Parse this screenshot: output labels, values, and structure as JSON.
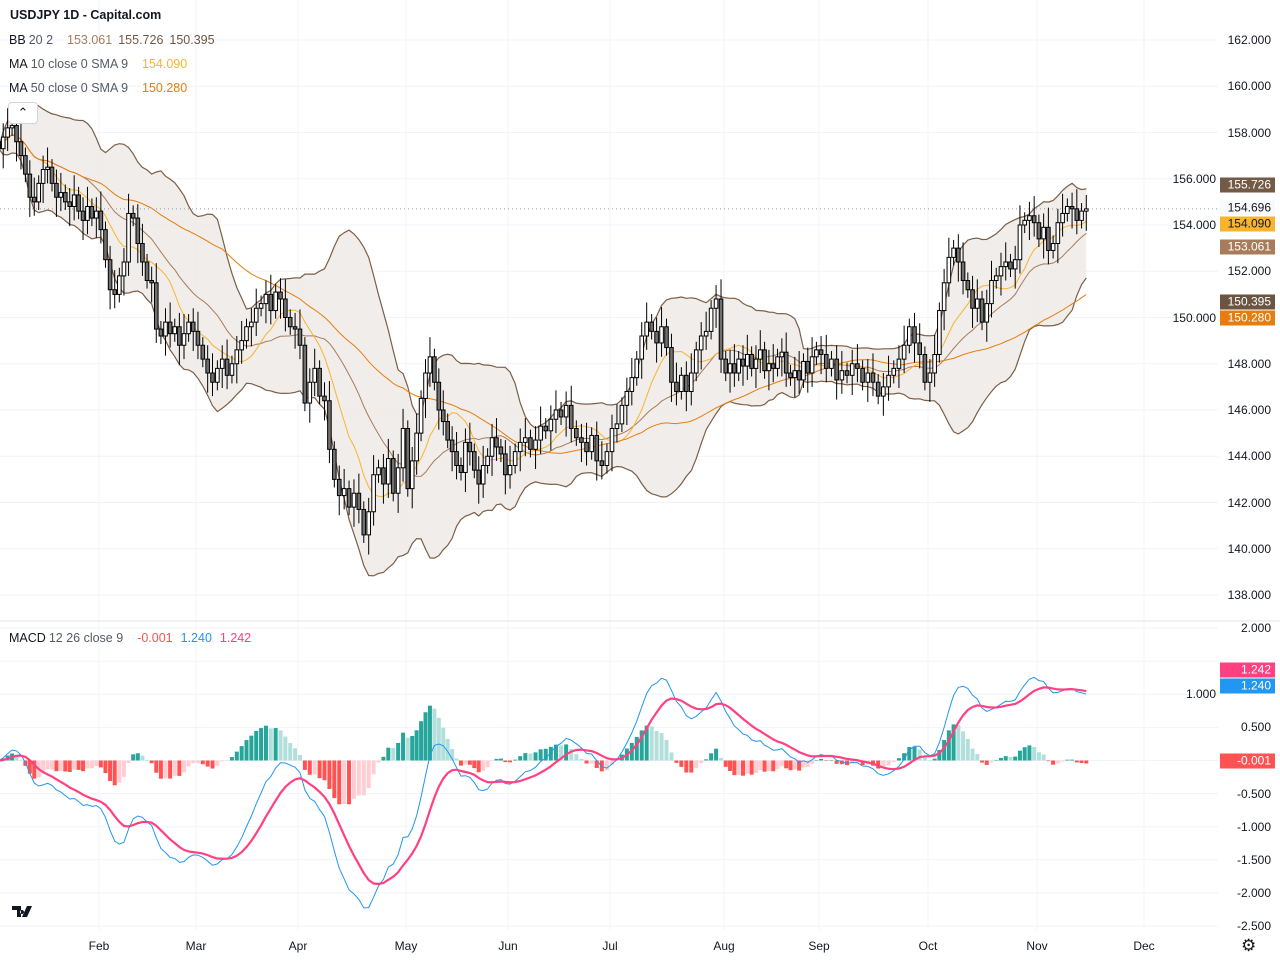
{
  "header": {
    "title": "USDJPY 1D - Capital.com",
    "collapse_icon": "chevron-up-icon"
  },
  "legend": {
    "bb": {
      "name": "BB",
      "params": "20 2",
      "values": [
        "153.061",
        "155.726",
        "150.395"
      ]
    },
    "ma10": {
      "name": "MA",
      "params": "10 close 0 SMA 9",
      "value": "154.090"
    },
    "ma50": {
      "name": "MA",
      "params": "50 close 0 SMA 9",
      "value": "150.280"
    },
    "macd": {
      "name": "MACD",
      "params": "12 26 close 9",
      "values": [
        "-0.001",
        "1.240",
        "1.242"
      ]
    }
  },
  "price_axis": {
    "labels": [
      "162.000",
      "160.000",
      "158.000",
      "156.000",
      "154.000",
      "152.000",
      "150.000",
      "148.000",
      "146.000",
      "144.000",
      "142.000",
      "140.000",
      "138.000"
    ],
    "tags": [
      {
        "value": "155.726",
        "color": "#735a44",
        "text_color": "#ffffff"
      },
      {
        "value": "154.696",
        "color": "#f8f9fb",
        "text_color": "#131722"
      },
      {
        "value": "154.090",
        "color": "#f9b42d",
        "text_color": "#131722"
      },
      {
        "value": "153.061",
        "color": "#a87c5a",
        "text_color": "#ffffff"
      },
      {
        "value": "150.395",
        "color": "#6b5541",
        "text_color": "#ffffff"
      },
      {
        "value": "150.280",
        "color": "#e67d0c",
        "text_color": "#ffffff"
      }
    ]
  },
  "macd_axis": {
    "labels": [
      "2.000",
      "1.000",
      "0.500",
      "-0.500",
      "-1.000",
      "-1.500",
      "-2.000",
      "-2.500"
    ],
    "tags": [
      {
        "value": "1.242",
        "color": "#ff4081"
      },
      {
        "value": "1.240",
        "color": "#2196f3"
      },
      {
        "value": "-0.001",
        "color": "#ff5252"
      }
    ]
  },
  "time_axis": {
    "labels": [
      "Feb",
      "Mar",
      "Apr",
      "May",
      "Jun",
      "Jul",
      "Aug",
      "Sep",
      "Oct",
      "Nov",
      "Dec"
    ]
  },
  "footer": {
    "logo": "TV",
    "settings_icon": "gear-icon"
  },
  "colors": {
    "candle_up": "#ffffff",
    "candle_down": "#707070",
    "candle_border": "#000000",
    "bb_band": "#7b5e46",
    "bb_basis": "#a87c5a",
    "bb_fill": "#efebe8",
    "ma10": "#f9b42d",
    "ma50": "#e67d0c",
    "macd_line": "#2196f3",
    "signal_line": "#ff4081",
    "hist_pos_up": "#26a69a",
    "hist_pos_down": "#b2dfdb",
    "hist_neg_down": "#ff5252",
    "hist_neg_up": "#ffcdd2"
  },
  "chart_data": {
    "type": "candlestick",
    "symbol": "USDJPY",
    "interval": "1D",
    "price_range": [
      138,
      162
    ],
    "macd_range": [
      -2.5,
      2.0
    ],
    "grid": true,
    "closes_by_month": {
      "Jan": [
        157.3,
        157.8,
        158.2,
        158.3,
        157.6,
        157.0,
        156.2,
        155.2,
        155.0,
        155.8,
        156.4,
        156.5,
        155.8,
        155.2,
        155.4,
        155.0,
        154.8,
        155.3,
        154.6,
        154.2,
        154.8,
        154.3,
        154.6
      ],
      "Feb": [
        153.8,
        152.5,
        151.2,
        151.0,
        151.8,
        152.4,
        154.5,
        154.3,
        153.2,
        152.4,
        151.6,
        151.5,
        149.5,
        149.2,
        149.8,
        149.3,
        149.6,
        148.8,
        149.3,
        149.8,
        149.4
      ],
      "Mar": [
        148.8,
        148.2,
        147.6,
        147.2,
        147.8,
        148.2,
        147.5,
        148.0,
        148.6,
        149.0,
        149.6,
        149.8,
        150.4,
        150.6,
        151.0,
        150.3,
        151.1,
        150.8,
        150.0,
        149.6,
        149.5
      ],
      "Apr": [
        148.8,
        146.3,
        147.2,
        147.8,
        146.6,
        146.4,
        144.3,
        143.0,
        142.3,
        142.6,
        141.8,
        142.4,
        141.7,
        140.6,
        141.6,
        143.2,
        143.5,
        142.8,
        143.9,
        142.4,
        143.5,
        145.2
      ],
      "May": [
        142.6,
        143.8,
        145.0,
        146.5,
        147.6,
        148.3,
        147.2,
        146.0,
        145.5,
        144.7,
        144.2,
        143.6,
        143.3,
        144.6,
        144.2,
        143.4,
        142.8,
        143.6,
        144.0,
        144.8,
        144.4,
        144.1,
        143.2
      ],
      "Jun": [
        143.6,
        144.2,
        144.6,
        144.8,
        144.3,
        144.7,
        145.3,
        145.1,
        145.6,
        146.0,
        145.7,
        146.2,
        145.2,
        144.8,
        144.6,
        144.2,
        144.9,
        143.8,
        143.6,
        144.2
      ],
      "Jul": [
        145.2,
        145.4,
        146.2,
        146.8,
        147.4,
        148.2,
        149.2,
        149.8,
        149.4,
        148.9,
        149.6,
        148.7,
        147.2,
        146.8,
        147.5,
        146.8,
        147.6,
        148.6,
        149.2,
        149.4,
        150.4,
        150.8,
        148.2
      ],
      "Aug": [
        147.6,
        148.0,
        147.6,
        148.2,
        147.9,
        148.4,
        147.8,
        148.2,
        148.6,
        147.7,
        148.0,
        147.8,
        148.3,
        148.5,
        147.6,
        147.4,
        147.7,
        147.3,
        148.1,
        147.6,
        148.3,
        148.6
      ],
      "Sep": [
        148.4,
        147.8,
        148.2,
        147.3,
        147.7,
        147.5,
        148.0,
        147.8,
        147.2,
        147.6,
        147.2,
        146.6,
        147.0,
        147.5,
        147.8,
        148.2,
        148.8,
        149.6,
        148.9,
        148.4,
        147.2
      ],
      "Oct": [
        147.6,
        148.4,
        150.3,
        151.5,
        152.6,
        153.0,
        152.4,
        151.6,
        151.2,
        150.4,
        150.8,
        149.8,
        150.6,
        151.6,
        151.8,
        152.2,
        152.4,
        152.1,
        152.5,
        154.0,
        154.2,
        154.4,
        154.1
      ],
      "Nov": [
        153.4,
        153.9,
        152.9,
        153.2,
        154.1,
        154.5,
        154.8,
        154.7,
        154.2,
        154.6,
        154.696
      ]
    },
    "last_price": 154.696
  }
}
